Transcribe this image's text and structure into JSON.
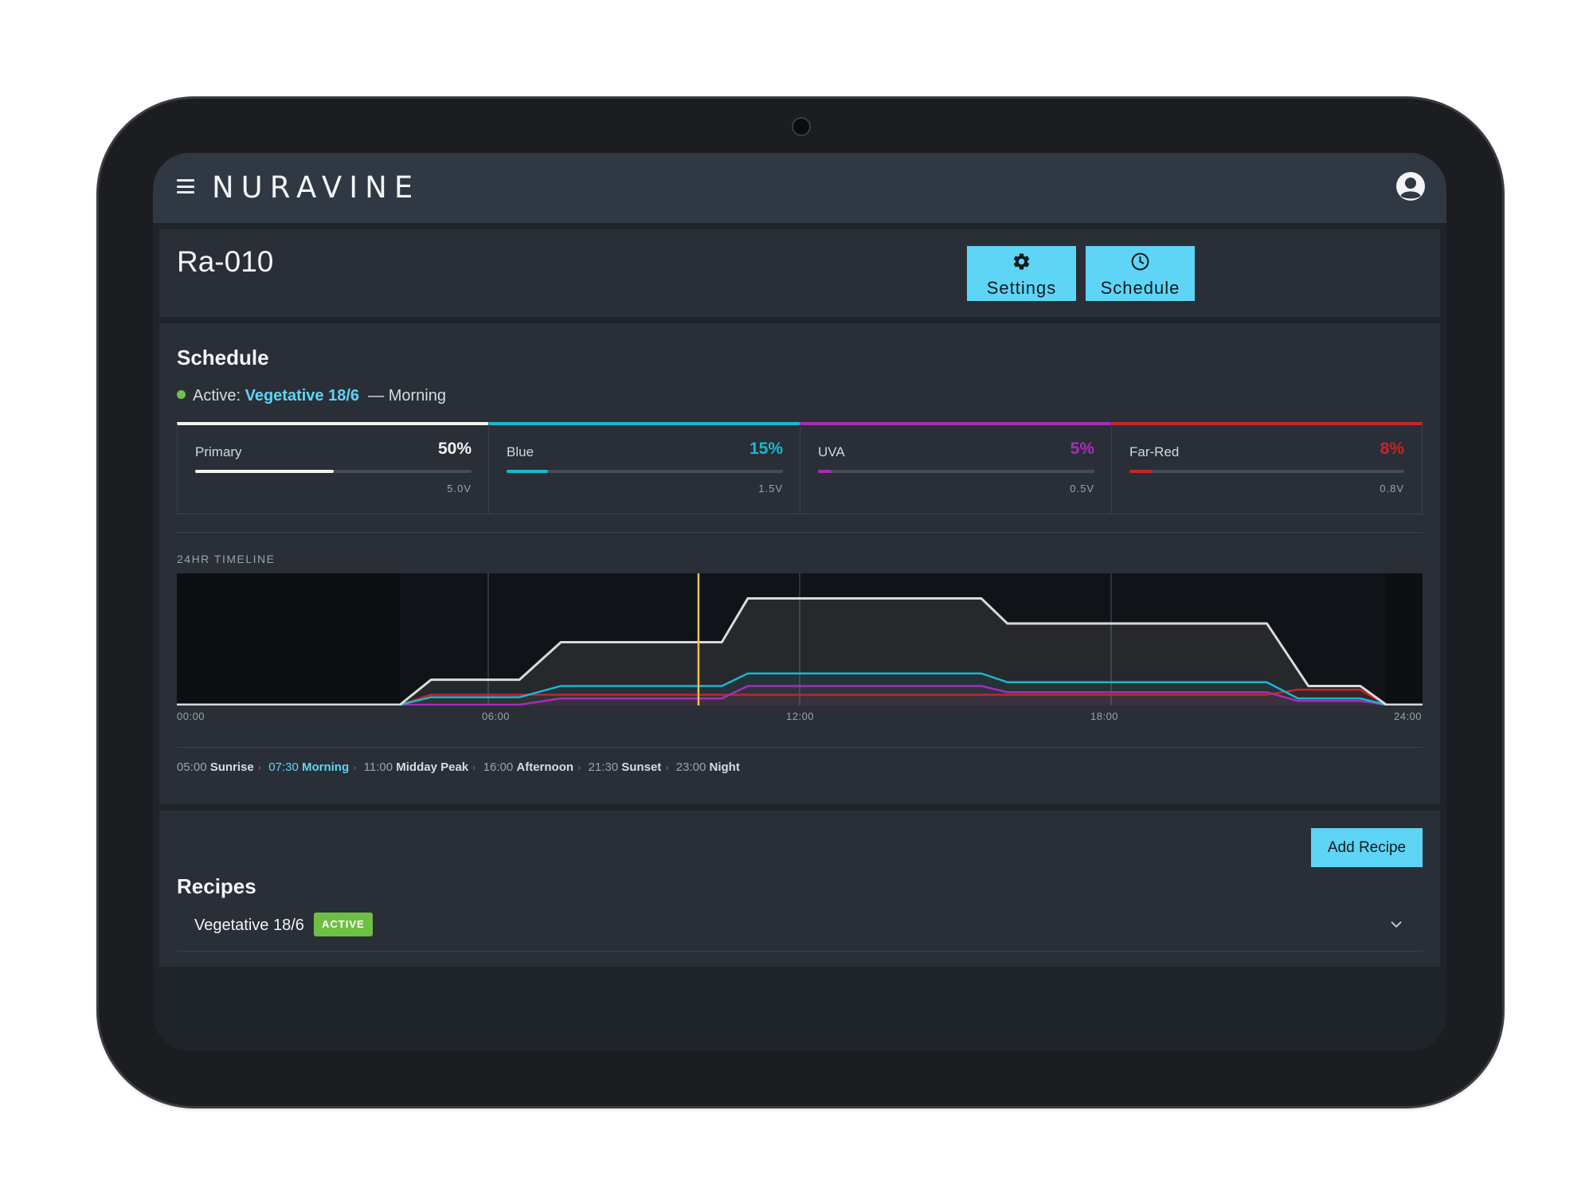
{
  "app": {
    "brand": "NURAVINE"
  },
  "device": {
    "name": "Ra-010"
  },
  "actions": {
    "settings_label": "Settings",
    "schedule_label": "Schedule"
  },
  "schedule": {
    "title": "Schedule",
    "active_prefix": "Active:",
    "active_recipe": "Vegetative 18/6",
    "active_phase": "— Morning",
    "channels": [
      {
        "name": "Primary",
        "percent_label": "50%",
        "percent": 50,
        "voltage": "5.0V",
        "color": "#f2f2f2"
      },
      {
        "name": "Blue",
        "percent_label": "15%",
        "percent": 15,
        "voltage": "1.5V",
        "color": "#17b8cf"
      },
      {
        "name": "UVA",
        "percent_label": "5%",
        "percent": 5,
        "voltage": "0.5V",
        "color": "#a42fb8"
      },
      {
        "name": "Far-Red",
        "percent_label": "8%",
        "percent": 8,
        "voltage": "0.8V",
        "color": "#c4262a"
      }
    ],
    "timeline": {
      "label": "24HR TIMELINE",
      "ticks": [
        "00:00",
        "06:00",
        "12:00",
        "18:00",
        "24:00"
      ],
      "current_time_hours": 10.05,
      "phases": [
        {
          "time": "05:00",
          "name": "Sunrise",
          "current": false
        },
        {
          "time": "07:30",
          "name": "Morning",
          "current": true
        },
        {
          "time": "11:00",
          "name": "Midday Peak",
          "current": false
        },
        {
          "time": "16:00",
          "name": "Afternoon",
          "current": false
        },
        {
          "time": "21:30",
          "name": "Sunset",
          "current": false
        },
        {
          "time": "23:00",
          "name": "Night",
          "current": false
        }
      ]
    }
  },
  "recipes": {
    "title": "Recipes",
    "add_label": "Add Recipe",
    "items": [
      {
        "name": "Vegetative 18/6",
        "badge": "ACTIVE"
      }
    ]
  },
  "chart_data": {
    "type": "line",
    "xlabel": "",
    "ylabel": "",
    "xlim": [
      0,
      24
    ],
    "ylim": [
      0,
      100
    ],
    "series": [
      {
        "name": "Primary",
        "color": "#d9d9d9",
        "points": [
          [
            0,
            0
          ],
          [
            4.3,
            0
          ],
          [
            4.9,
            20
          ],
          [
            6.6,
            20
          ],
          [
            7.4,
            50
          ],
          [
            10.5,
            50
          ],
          [
            11.0,
            85
          ],
          [
            15.5,
            85
          ],
          [
            16.0,
            65
          ],
          [
            21.0,
            65
          ],
          [
            21.8,
            15
          ],
          [
            22.8,
            15
          ],
          [
            23.3,
            0
          ],
          [
            24,
            0
          ]
        ]
      },
      {
        "name": "Blue",
        "color": "#17b8cf",
        "points": [
          [
            0,
            0
          ],
          [
            4.3,
            0
          ],
          [
            4.9,
            6
          ],
          [
            6.6,
            6
          ],
          [
            7.4,
            15
          ],
          [
            10.5,
            15
          ],
          [
            11.0,
            25
          ],
          [
            15.5,
            25
          ],
          [
            16.0,
            18
          ],
          [
            21.0,
            18
          ],
          [
            21.6,
            5
          ],
          [
            22.8,
            5
          ],
          [
            23.3,
            0
          ],
          [
            24,
            0
          ]
        ]
      },
      {
        "name": "UVA",
        "color": "#a42fb8",
        "points": [
          [
            0,
            0
          ],
          [
            6.6,
            0
          ],
          [
            7.4,
            5
          ],
          [
            10.5,
            5
          ],
          [
            11.0,
            15
          ],
          [
            15.5,
            15
          ],
          [
            16.0,
            10
          ],
          [
            21.0,
            10
          ],
          [
            21.6,
            3
          ],
          [
            22.8,
            3
          ],
          [
            23.3,
            0
          ],
          [
            24,
            0
          ]
        ]
      },
      {
        "name": "Far-Red",
        "color": "#c4262a",
        "points": [
          [
            0,
            0
          ],
          [
            4.3,
            0
          ],
          [
            4.9,
            8
          ],
          [
            6.6,
            8
          ],
          [
            7.4,
            8
          ],
          [
            10.5,
            8
          ],
          [
            11.0,
            8
          ],
          [
            21.0,
            8
          ],
          [
            21.6,
            12
          ],
          [
            22.8,
            12
          ],
          [
            23.3,
            0
          ],
          [
            24,
            0
          ]
        ]
      }
    ]
  }
}
